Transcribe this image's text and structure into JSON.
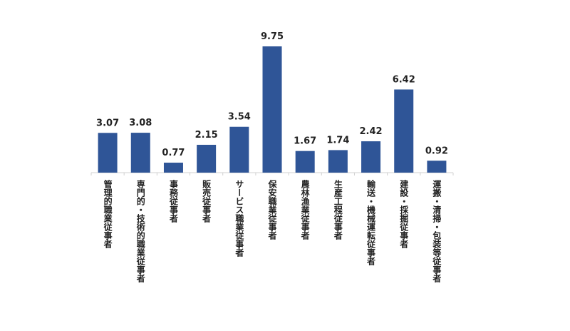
{
  "chart_data": {
    "type": "bar",
    "categories": [
      "管理的職業従事者",
      "専門的・技術的職業従事者",
      "事務従事者",
      "販売従事者",
      "サービス職業従事者",
      "保安職業従事者",
      "農林漁業従事者",
      "生産工程従事者",
      "輸送・機械運転従事者",
      "建設・採掘従事者",
      "運搬・清掃・包装等従事者"
    ],
    "values": [
      3.07,
      3.08,
      0.77,
      2.15,
      3.54,
      9.75,
      1.67,
      1.74,
      2.42,
      6.42,
      0.92
    ],
    "color": "#2f5597"
  }
}
